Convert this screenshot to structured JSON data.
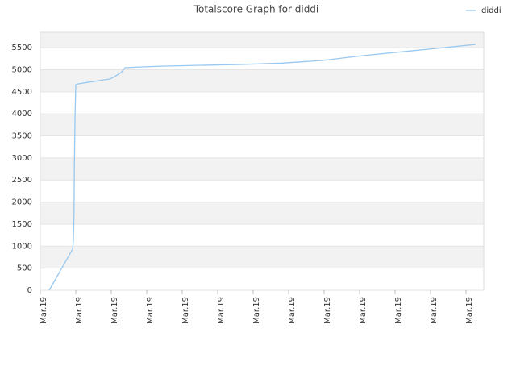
{
  "chart_data": {
    "type": "line",
    "title": "Totalscore Graph for diddi",
    "x": [
      0.25,
      0.91,
      0.93,
      0.95,
      0.96,
      0.98,
      1.0,
      1.07,
      1.95,
      2.02,
      2.27,
      2.39,
      2.73,
      3.41,
      4.55,
      5.68,
      6.82,
      7.95,
      9.09,
      10.23,
      11.36,
      12.27
    ],
    "series": [
      {
        "name": "diddi",
        "color": "#99c8f0",
        "values": [
          0,
          932,
          1100,
          1740,
          2830,
          3984,
          4660,
          4680,
          4790,
          4810,
          4930,
          5045,
          5060,
          5080,
          5100,
          5120,
          5150,
          5210,
          5320,
          5410,
          5500,
          5575
        ]
      }
    ],
    "xlim": [
      0,
      12.5
    ],
    "xticks": [
      {
        "value": 0,
        "label": "Mar.19"
      },
      {
        "value": 1,
        "label": "Mar.19"
      },
      {
        "value": 2,
        "label": "Mar.19"
      },
      {
        "value": 3,
        "label": "Mar.19"
      },
      {
        "value": 4,
        "label": "Mar.19"
      },
      {
        "value": 5,
        "label": "Mar.19"
      },
      {
        "value": 6,
        "label": "Mar.19"
      },
      {
        "value": 7,
        "label": "Mar.19"
      },
      {
        "value": 8,
        "label": "Mar.19"
      },
      {
        "value": 9,
        "label": "Mar.19"
      },
      {
        "value": 10,
        "label": "Mar.19"
      },
      {
        "value": 11,
        "label": "Mar.19"
      },
      {
        "value": 12,
        "label": "Mar.19"
      }
    ],
    "ylim": [
      0,
      5850
    ],
    "yticks": [
      0,
      500,
      1000,
      1500,
      2000,
      2500,
      3000,
      3500,
      4000,
      4500,
      5000,
      5500
    ],
    "grid": true,
    "legend": "top-right"
  }
}
